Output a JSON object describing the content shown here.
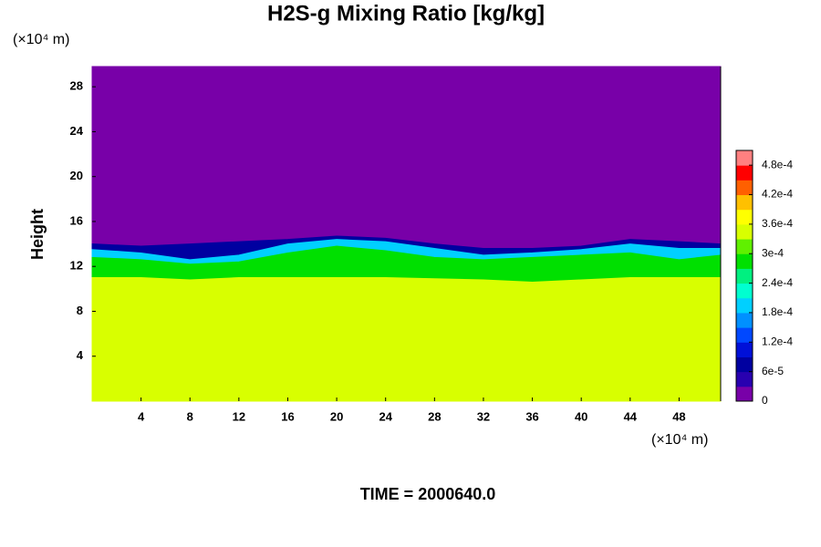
{
  "chart_data": {
    "type": "contour",
    "title": "H2S-g Mixing Ratio [kg/kg]",
    "ylabel": "Height",
    "xunit": "(×10⁴ m)",
    "yunit": "(×10⁴ m)",
    "footer": "TIME = 2000640.0",
    "xlim": [
      0,
      51.4
    ],
    "ylim": [
      0,
      29.8
    ],
    "xticks": [
      4,
      8,
      12,
      16,
      20,
      24,
      28,
      32,
      36,
      40,
      44,
      48
    ],
    "yticks": [
      4,
      8,
      12,
      16,
      20,
      24,
      28
    ],
    "x": [
      0,
      4,
      8,
      12,
      16,
      20,
      24,
      28,
      32,
      36,
      40,
      44,
      48,
      51.4
    ],
    "bands": [
      {
        "value": 0,
        "top": [
          29.8,
          29.8,
          29.8,
          29.8,
          29.8,
          29.8,
          29.8,
          29.8,
          29.8,
          29.8,
          29.8,
          29.8,
          29.8,
          29.8
        ]
      },
      {
        "value": 6e-05,
        "top": [
          14.0,
          13.8,
          14.0,
          14.2,
          14.4,
          14.7,
          14.5,
          14.0,
          13.6,
          13.6,
          13.8,
          14.4,
          14.2,
          14.0
        ]
      },
      {
        "value": 0.00018,
        "top": [
          13.5,
          13.2,
          12.6,
          13.0,
          14.0,
          14.4,
          14.2,
          13.6,
          13.0,
          13.2,
          13.5,
          14.0,
          13.6,
          13.6
        ]
      },
      {
        "value": 0.00028,
        "top": [
          12.8,
          12.6,
          12.2,
          12.4,
          13.2,
          13.8,
          13.4,
          12.8,
          12.6,
          12.8,
          13.0,
          13.2,
          12.6,
          13.0
        ]
      },
      {
        "value": 0.00034,
        "top": [
          11.0,
          11.0,
          10.8,
          11.0,
          11.0,
          11.0,
          11.0,
          10.9,
          10.8,
          10.6,
          10.8,
          11.0,
          11.0,
          11.0
        ]
      }
    ],
    "clim": [
      0,
      0.00051
    ],
    "colors": [
      "#7800a8",
      "#2800b0",
      "#0000a0",
      "#0010d8",
      "#0048ff",
      "#0090ff",
      "#00d0ff",
      "#00ffd0",
      "#00f080",
      "#00e000",
      "#60f000",
      "#d8ff00",
      "#ffff00",
      "#ffc000",
      "#ff6000",
      "#ff0000",
      "#ff8080"
    ],
    "cticks": [
      0,
      {
        "value": 6e-05,
        "label": "6e-5"
      },
      {
        "value": 0.00012,
        "label": "1.2e-4"
      },
      {
        "value": 0.00018,
        "label": "1.8e-4"
      },
      {
        "value": 0.00024,
        "label": "2.4e-4"
      },
      {
        "value": 0.0003,
        "label": "3e-4"
      },
      {
        "value": 0.00036,
        "label": "3.6e-4"
      },
      {
        "value": 0.00042,
        "label": "4.2e-4"
      },
      {
        "value": 0.00048,
        "label": "4.8e-4"
      }
    ]
  }
}
